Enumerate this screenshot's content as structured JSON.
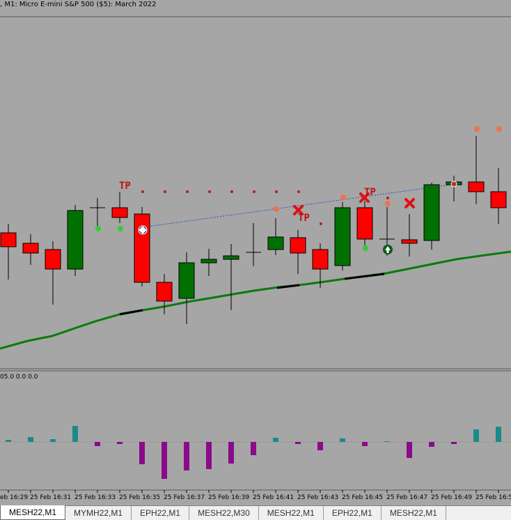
{
  "chart_title": ", M1:  Micro E-mini S&P 500 ($5): March 2022",
  "indicator_label": "05.0 0.0 0.0",
  "tp_label": "TP",
  "colors": {
    "background": "#a6a6a6",
    "bull": "#007000",
    "bear": "#ff0000",
    "ma": "#0a7a0a",
    "ma_flat": "#000000",
    "hist_pos": "#1a8a8a",
    "hist_neg": "#8a0a8a",
    "dot_green": "#33cc33",
    "dot_salmon": "#f07050",
    "dot_darkred": "#b02020",
    "trendline": "#1f4fbf"
  },
  "x_axis_labels": [
    "eb 16:29",
    "25 Feb 16:31",
    "25 Feb 16:33",
    "25 Feb 16:35",
    "25 Feb 16:37",
    "25 Feb 16:39",
    "25 Feb 16:41",
    "25 Feb 16:43",
    "25 Feb 16:45",
    "25 Feb 16:47",
    "25 Feb 16:49",
    "25 Feb 16:5"
  ],
  "tabs": [
    {
      "label": "MESH22,M1",
      "active": true
    },
    {
      "label": "MYMH22,M1",
      "active": false
    },
    {
      "label": "EPH22,M1",
      "active": false
    },
    {
      "label": "MESH22,M30",
      "active": false
    },
    {
      "label": "MESH22,M1",
      "active": false
    },
    {
      "label": "EPH22,M1",
      "active": false
    },
    {
      "label": "MESH22,M1",
      "active": false
    }
  ]
}
